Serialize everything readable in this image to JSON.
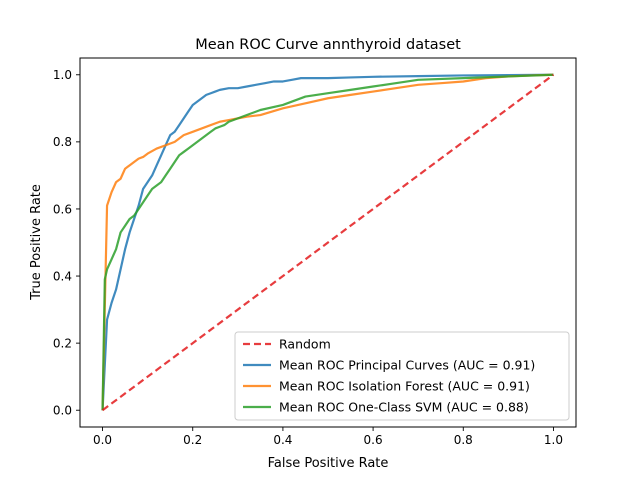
{
  "chart_data": {
    "type": "line",
    "title": "Mean ROC Curve annthyroid dataset",
    "xlabel": "False Positive Rate",
    "ylabel": "True Positive Rate",
    "xlim": [
      -0.05,
      1.05
    ],
    "ylim": [
      -0.05,
      1.05
    ],
    "xticks": [
      "0.0",
      "0.2",
      "0.4",
      "0.6",
      "0.8",
      "1.0"
    ],
    "yticks": [
      "0.0",
      "0.2",
      "0.4",
      "0.6",
      "0.8",
      "1.0"
    ],
    "grid": false,
    "legend_position": "lower-right",
    "series": [
      {
        "name": "Random",
        "color": "#e31a1c",
        "style": "dashed",
        "x": [
          0,
          1
        ],
        "y": [
          0,
          1
        ]
      },
      {
        "name": "Mean ROC Principal Curves (AUC = 0.91)",
        "color": "#1f77b4",
        "style": "solid",
        "x": [
          0,
          0.01,
          0.02,
          0.03,
          0.04,
          0.05,
          0.06,
          0.07,
          0.08,
          0.09,
          0.1,
          0.11,
          0.12,
          0.13,
          0.14,
          0.15,
          0.16,
          0.17,
          0.18,
          0.19,
          0.2,
          0.21,
          0.22,
          0.23,
          0.24,
          0.25,
          0.26,
          0.28,
          0.3,
          0.32,
          0.34,
          0.36,
          0.38,
          0.4,
          0.42,
          0.44,
          0.46,
          0.5,
          0.55,
          0.6,
          0.7,
          0.8,
          0.9,
          1.0
        ],
        "y": [
          0,
          0.27,
          0.32,
          0.36,
          0.42,
          0.48,
          0.53,
          0.57,
          0.61,
          0.66,
          0.68,
          0.7,
          0.73,
          0.76,
          0.79,
          0.82,
          0.83,
          0.85,
          0.87,
          0.89,
          0.91,
          0.92,
          0.93,
          0.94,
          0.945,
          0.95,
          0.955,
          0.96,
          0.96,
          0.965,
          0.97,
          0.975,
          0.98,
          0.98,
          0.985,
          0.99,
          0.99,
          0.99,
          0.992,
          0.994,
          0.996,
          0.998,
          0.999,
          1.0
        ]
      },
      {
        "name": "Mean ROC Isolation Forest (AUC = 0.91)",
        "color": "#ff7f0e",
        "style": "solid",
        "x": [
          0,
          0.01,
          0.02,
          0.03,
          0.04,
          0.05,
          0.06,
          0.07,
          0.08,
          0.09,
          0.1,
          0.12,
          0.14,
          0.16,
          0.18,
          0.2,
          0.22,
          0.24,
          0.26,
          0.28,
          0.3,
          0.32,
          0.35,
          0.4,
          0.45,
          0.5,
          0.55,
          0.6,
          0.65,
          0.7,
          0.75,
          0.8,
          0.85,
          0.9,
          0.95,
          1.0
        ],
        "y": [
          0,
          0.61,
          0.65,
          0.68,
          0.69,
          0.72,
          0.73,
          0.74,
          0.75,
          0.755,
          0.765,
          0.78,
          0.79,
          0.8,
          0.82,
          0.83,
          0.84,
          0.85,
          0.86,
          0.865,
          0.87,
          0.875,
          0.88,
          0.9,
          0.915,
          0.93,
          0.94,
          0.95,
          0.96,
          0.97,
          0.975,
          0.98,
          0.99,
          0.995,
          0.998,
          1.0
        ]
      },
      {
        "name": "Mean ROC One-Class SVM (AUC = 0.88)",
        "color": "#2ca02c",
        "style": "solid",
        "x": [
          0,
          0.005,
          0.01,
          0.02,
          0.03,
          0.04,
          0.05,
          0.06,
          0.07,
          0.08,
          0.09,
          0.1,
          0.11,
          0.12,
          0.13,
          0.14,
          0.15,
          0.16,
          0.17,
          0.18,
          0.19,
          0.2,
          0.21,
          0.22,
          0.23,
          0.24,
          0.25,
          0.26,
          0.27,
          0.28,
          0.3,
          0.32,
          0.35,
          0.4,
          0.45,
          0.5,
          0.55,
          0.6,
          0.65,
          0.7,
          0.8,
          0.9,
          1.0
        ],
        "y": [
          0,
          0.39,
          0.42,
          0.45,
          0.48,
          0.53,
          0.55,
          0.57,
          0.58,
          0.6,
          0.62,
          0.64,
          0.66,
          0.67,
          0.68,
          0.7,
          0.72,
          0.74,
          0.76,
          0.77,
          0.78,
          0.79,
          0.8,
          0.81,
          0.82,
          0.83,
          0.84,
          0.845,
          0.85,
          0.86,
          0.87,
          0.88,
          0.895,
          0.91,
          0.935,
          0.945,
          0.955,
          0.965,
          0.975,
          0.985,
          0.99,
          0.995,
          1.0
        ]
      }
    ]
  }
}
